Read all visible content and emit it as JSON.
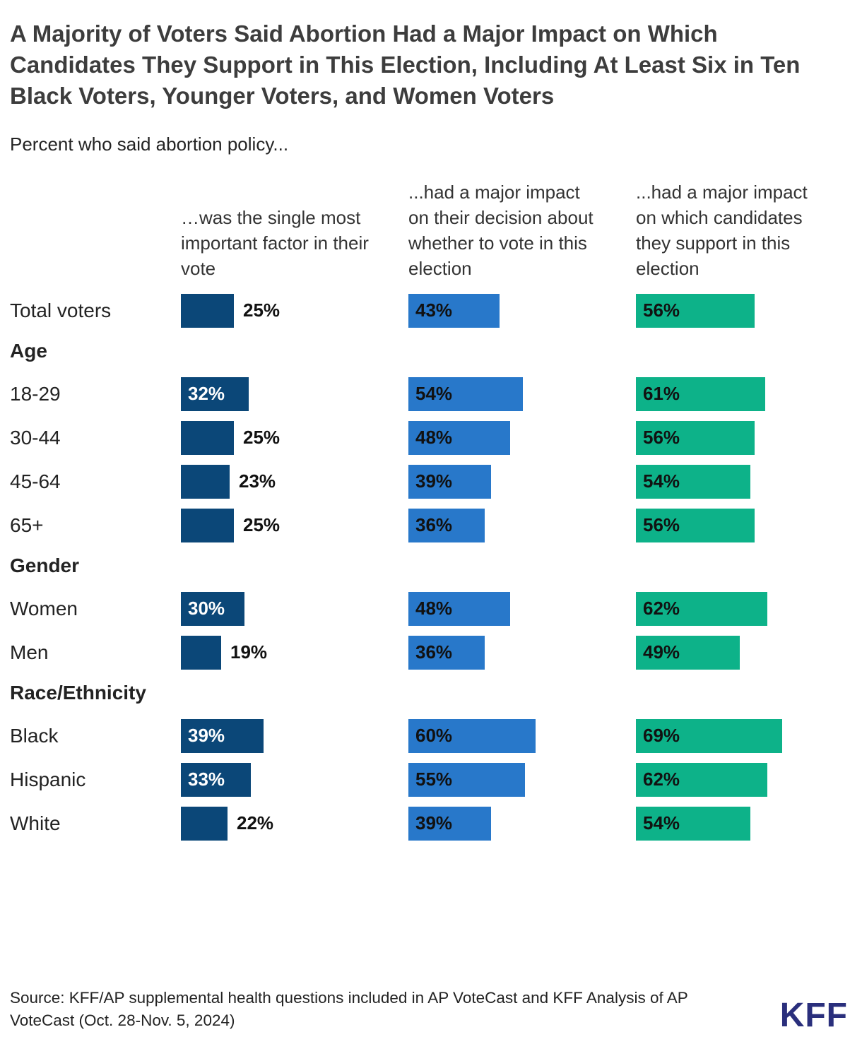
{
  "page": {
    "title": "A Majority of Voters Said Abortion Had a Major Impact on Which Candidates They Support in This Election, Including At Least Six in Ten Black Voters, Younger Voters, and Women Voters",
    "subtitle": "Percent who said abortion policy...",
    "source": "Source: KFF/AP supplemental health questions included in AP VoteCast and KFF Analysis of AP VoteCast (Oct. 28-Nov. 5, 2024)",
    "logo_text": "KFF"
  },
  "colors": {
    "title_text": "#3d3d3d",
    "dark_blue": "#0b4778",
    "medium_blue": "#2878ca",
    "teal_green": "#0db289",
    "kff_logo": "#2a2f7c"
  },
  "chart_data": {
    "type": "bar",
    "orientation": "horizontal",
    "unit": "%",
    "title": "Percent who said abortion policy...",
    "legend_position": "column-headers",
    "grid": false,
    "value_range": [
      0,
      100
    ],
    "columns": [
      {
        "header": "…was the single most important factor in their vote",
        "color": "#0b4778"
      },
      {
        "header": "...had a major impact on their decision about whether to vote in this election",
        "color": "#2878ca"
      },
      {
        "header": "...had a major impact on which candidates they support in this election",
        "color": "#0db289"
      }
    ],
    "rows": [
      {
        "type": "data",
        "label": "Total voters",
        "values": [
          25,
          43,
          56
        ]
      },
      {
        "type": "section",
        "label": "Age"
      },
      {
        "type": "data",
        "label": "18-29",
        "values": [
          32,
          54,
          61
        ]
      },
      {
        "type": "data",
        "label": "30-44",
        "values": [
          25,
          48,
          56
        ]
      },
      {
        "type": "data",
        "label": "45-64",
        "values": [
          23,
          39,
          54
        ]
      },
      {
        "type": "data",
        "label": "65+",
        "values": [
          25,
          36,
          56
        ]
      },
      {
        "type": "section",
        "label": "Gender"
      },
      {
        "type": "data",
        "label": "Women",
        "values": [
          30,
          48,
          62
        ]
      },
      {
        "type": "data",
        "label": "Men",
        "values": [
          19,
          36,
          49
        ]
      },
      {
        "type": "section",
        "label": "Race/Ethnicity"
      },
      {
        "type": "data",
        "label": "Black",
        "values": [
          39,
          60,
          69
        ]
      },
      {
        "type": "data",
        "label": "Hispanic",
        "values": [
          33,
          55,
          62
        ]
      },
      {
        "type": "data",
        "label": "White",
        "values": [
          22,
          39,
          54
        ]
      }
    ]
  }
}
